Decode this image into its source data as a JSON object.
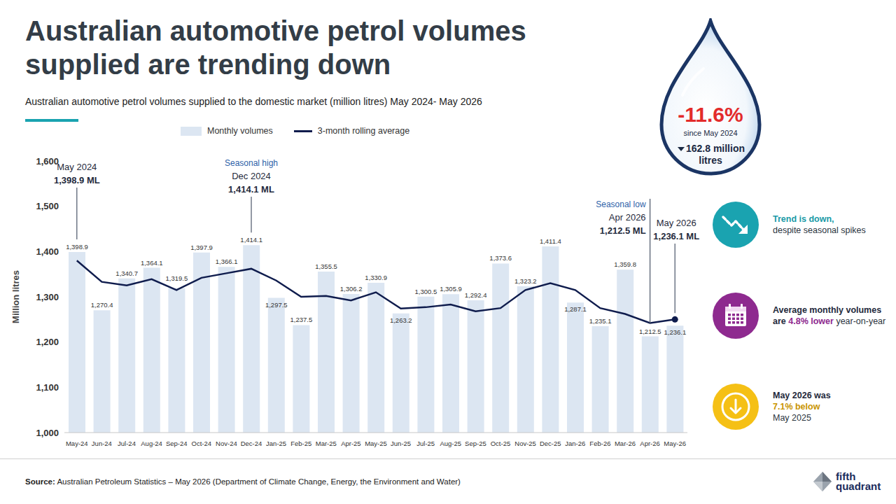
{
  "chart_data": {
    "type": "bar",
    "title": "Australian automotive petrol volumes supplied are trending down",
    "subtitle": "Australian automotive petrol volumes supplied to the domestic market (million litres) May 2024- May 2026",
    "y_label": "Million litres",
    "categories": [
      "May-24",
      "Jun-24",
      "Jul-24",
      "Aug-24",
      "Sep-24",
      "Oct-24",
      "Nov-24",
      "Dec-24",
      "Jan-25",
      "Feb-25",
      "Mar-25",
      "Apr-25",
      "May-25",
      "Jun-25",
      "Jul-25",
      "Aug-25",
      "Sep-25",
      "Oct-25",
      "Nov-25",
      "Dec-25",
      "Jan-26",
      "Feb-26",
      "Mar-26",
      "Apr-26",
      "May-26"
    ],
    "series": [
      {
        "name": "Monthly volumes",
        "type": "bar",
        "color": "#dce6f2",
        "values": [
          1398.9,
          1270.4,
          1340.7,
          1364.1,
          1319.5,
          1397.9,
          1366.1,
          1414.1,
          1297.5,
          1237.5,
          1355.5,
          1306.2,
          1330.9,
          1263.2,
          1300.5,
          1305.9,
          1292.4,
          1373.6,
          1323.2,
          1411.4,
          1287.1,
          1235.1,
          1359.8,
          1212.5,
          1236.1
        ],
        "data_labels": true,
        "value_labels": [
          "1,398.9",
          "1,270.4",
          "1,340.7",
          "1,364.1",
          "1,319.5",
          "1,397.9",
          "1,366.1",
          "1,414.1",
          "1,297.5",
          "1,237.5",
          "1,355.5",
          "1,306.2",
          "1,330.9",
          "1,263.2",
          "1,300.5",
          "1,305.9",
          "1,292.4",
          "1,373.6",
          "1,323.2",
          "1,411.4",
          "1,287.1",
          "1,235.1",
          "1,359.8",
          "1,212.5",
          "1,236.1"
        ]
      },
      {
        "name": "3-month rolling average",
        "type": "line",
        "color": "#0f1c4d",
        "values": [
          1380,
          1333,
          1325,
          1339,
          1315,
          1342,
          1352,
          1362,
          1336,
          1300,
          1302,
          1292,
          1310,
          1274,
          1277,
          1283,
          1268,
          1275,
          1315,
          1330,
          1315,
          1275,
          1262,
          1242,
          1250
        ]
      }
    ],
    "ylim": [
      1000,
      1600
    ],
    "yticks": [
      {
        "value": 1000,
        "label": "1,000"
      },
      {
        "value": 1100,
        "label": "1,100"
      },
      {
        "value": 1200,
        "label": "1,200"
      },
      {
        "value": 1300,
        "label": "1,300"
      },
      {
        "value": 1400,
        "label": "1,400"
      },
      {
        "value": 1500,
        "label": "1,500"
      },
      {
        "value": 1600,
        "label": "1,600"
      }
    ],
    "grid": false,
    "legend": "top",
    "annotations": [
      {
        "category": "May-24",
        "value": 1398.9,
        "lines": [
          "May 2024",
          "1,398.9 ML"
        ]
      },
      {
        "category": "Dec-24",
        "value": 1414.1,
        "lines": [
          "Seasonal high",
          "Dec 2024",
          "1,414.1 ML"
        ]
      },
      {
        "category": "Apr-26",
        "value": 1212.5,
        "lines": [
          "Seasonal low",
          "Apr 2026",
          "1,212.5 ML"
        ]
      },
      {
        "category": "May-26",
        "value": 1236.1,
        "lines": [
          "May 2026",
          "1,236.1 ML"
        ]
      }
    ]
  },
  "callout": {
    "change": "-11.6%",
    "since": "since May 2024",
    "volume": "162.8 million litres"
  },
  "highlights": [
    {
      "parts": [
        "Trend is down,",
        "despite seasonal spikes"
      ]
    },
    {
      "parts": [
        "Average monthly volumes are",
        "4.8% lower",
        "year-on-year"
      ]
    },
    {
      "parts": [
        "May 2026 was",
        "7.1% below",
        "May 2025"
      ]
    }
  ],
  "source": {
    "label": "Source:",
    "text": "Australian Petroleum Statistics – May 2026 (Department of Climate Change, Energy, the Environment and Water)"
  },
  "logo": "fifth quadrant"
}
